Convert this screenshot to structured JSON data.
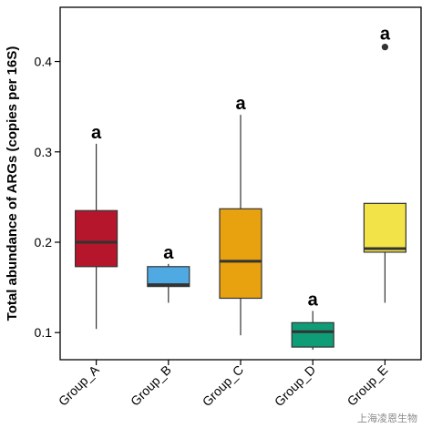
{
  "chart_data": {
    "type": "boxplot",
    "ylabel": "Total abundance of ARGs (copies per 16S)",
    "ylim": [
      0.07,
      0.46
    ],
    "yticks": [
      0.1,
      0.2,
      0.3,
      0.4
    ],
    "ytick_labels": [
      "0.1",
      "0.2",
      "0.3",
      "0.4"
    ],
    "grid": false,
    "groups": [
      {
        "name": "Group_A",
        "color": "#b5162b",
        "min": 0.104,
        "q1": 0.173,
        "median": 0.2,
        "q3": 0.235,
        "max": 0.309,
        "outliers": [],
        "label": "a"
      },
      {
        "name": "Group_B",
        "color": "#4fa9e2",
        "min": 0.133,
        "q1": 0.151,
        "median": 0.153,
        "q3": 0.173,
        "max": 0.176,
        "outliers": [],
        "label": "a"
      },
      {
        "name": "Group_C",
        "color": "#e8a10f",
        "min": 0.097,
        "q1": 0.138,
        "median": 0.179,
        "q3": 0.237,
        "max": 0.341,
        "outliers": [],
        "label": "a"
      },
      {
        "name": "Group_D",
        "color": "#0f9d77",
        "min": 0.081,
        "q1": 0.084,
        "median": 0.101,
        "q3": 0.111,
        "max": 0.124,
        "outliers": [],
        "label": "a"
      },
      {
        "name": "Group_E",
        "color": "#f2e349",
        "min": 0.133,
        "q1": 0.189,
        "median": 0.193,
        "q3": 0.243,
        "max": 0.243,
        "outliers": [
          0.416
        ],
        "label": "a"
      }
    ]
  },
  "watermark": "上海凌恩生物"
}
